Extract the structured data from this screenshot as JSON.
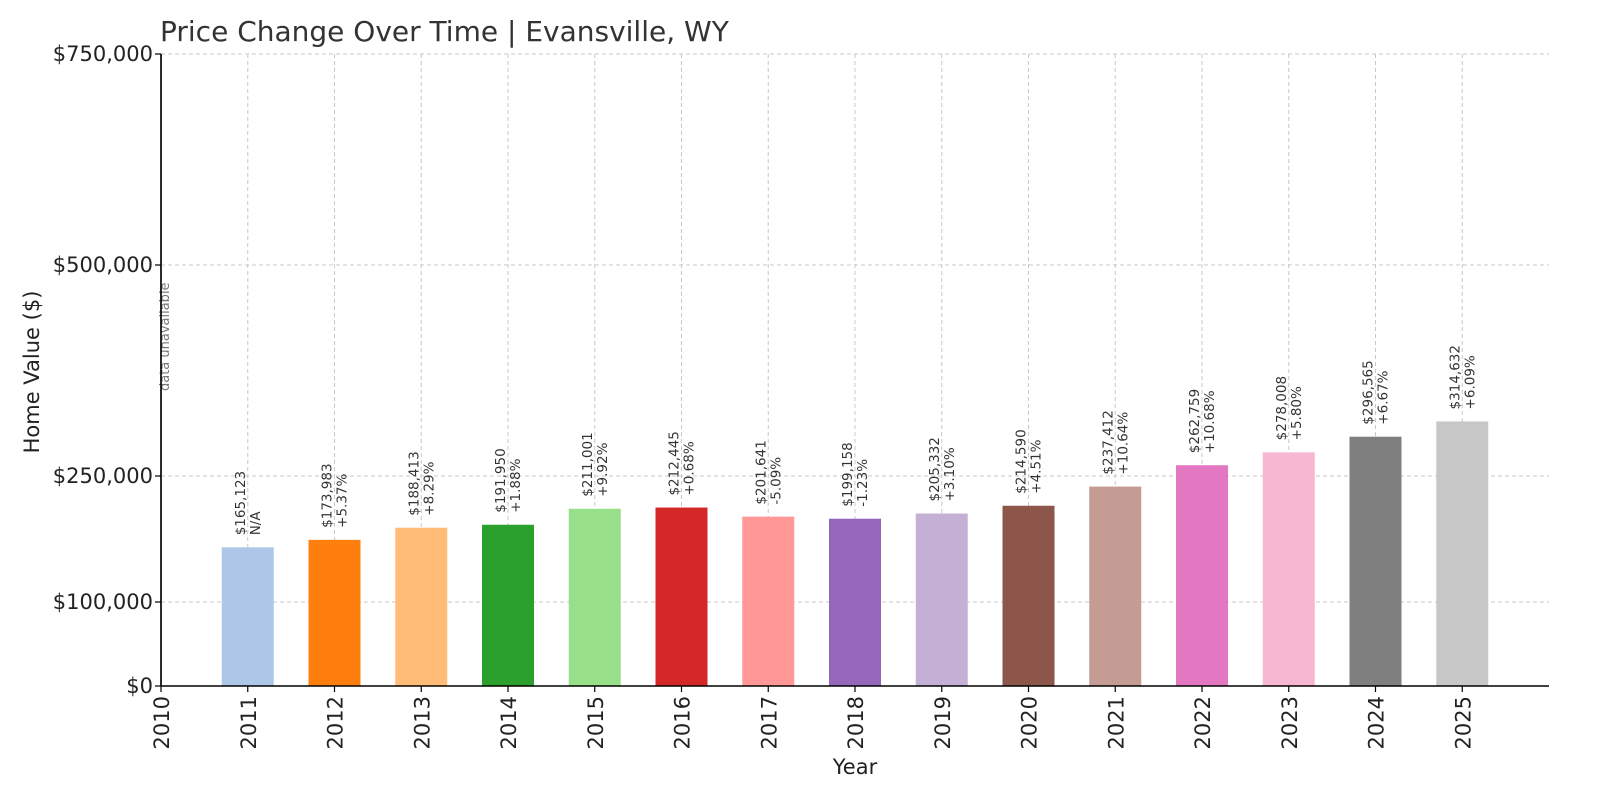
{
  "chart_data": {
    "type": "bar",
    "title": "Price Change Over Time | Evansville, WY",
    "xlabel": "Year",
    "ylabel": "Home Value ($)",
    "ylim": [
      0,
      750000
    ],
    "xlim": [
      2010,
      2026
    ],
    "yticks": [
      0,
      100000,
      250000,
      500000,
      750000
    ],
    "ytick_labels": [
      "$0",
      "$100,000",
      "$250,000",
      "$500,000",
      "$750,000"
    ],
    "xtick_labels": [
      "2010",
      "2011",
      "2012",
      "2013",
      "2014",
      "2015",
      "2016",
      "2017",
      "2018",
      "2019",
      "2020",
      "2021",
      "2022",
      "2023",
      "2024",
      "2025"
    ],
    "grid": true,
    "missing_note": "data unavailable",
    "missing_year": 2010,
    "series": [
      {
        "years": [
          2011,
          2012,
          2013,
          2014,
          2015,
          2016,
          2017,
          2018,
          2019,
          2020,
          2021,
          2022,
          2023,
          2024,
          2025
        ],
        "values": [
          165123,
          173983,
          188413,
          191950,
          211001,
          212445,
          201641,
          199158,
          205332,
          214590,
          237412,
          262759,
          278008,
          296565,
          314632
        ],
        "value_labels": [
          "$165,123",
          "$173,983",
          "$188,413",
          "$191,950",
          "$211,001",
          "$212,445",
          "$201,641",
          "$199,158",
          "$205,332",
          "$214,590",
          "$237,412",
          "$262,759",
          "$278,008",
          "$296,565",
          "$314,632"
        ],
        "change_labels": [
          "N/A",
          "+5.37%",
          "+8.29%",
          "+1.88%",
          "+9.92%",
          "+0.68%",
          "-5.09%",
          "-1.23%",
          "+3.10%",
          "+4.51%",
          "+10.64%",
          "+10.68%",
          "+5.80%",
          "+6.67%",
          "+6.09%"
        ],
        "colors": [
          "#aec7e8",
          "#ff7f0e",
          "#ffbb78",
          "#2ca02c",
          "#98df8a",
          "#d62728",
          "#ff9896",
          "#9467bd",
          "#c5b0d5",
          "#8c564b",
          "#c49c94",
          "#e377c2",
          "#f7b6d2",
          "#7f7f7f",
          "#c7c7c7"
        ]
      }
    ]
  }
}
